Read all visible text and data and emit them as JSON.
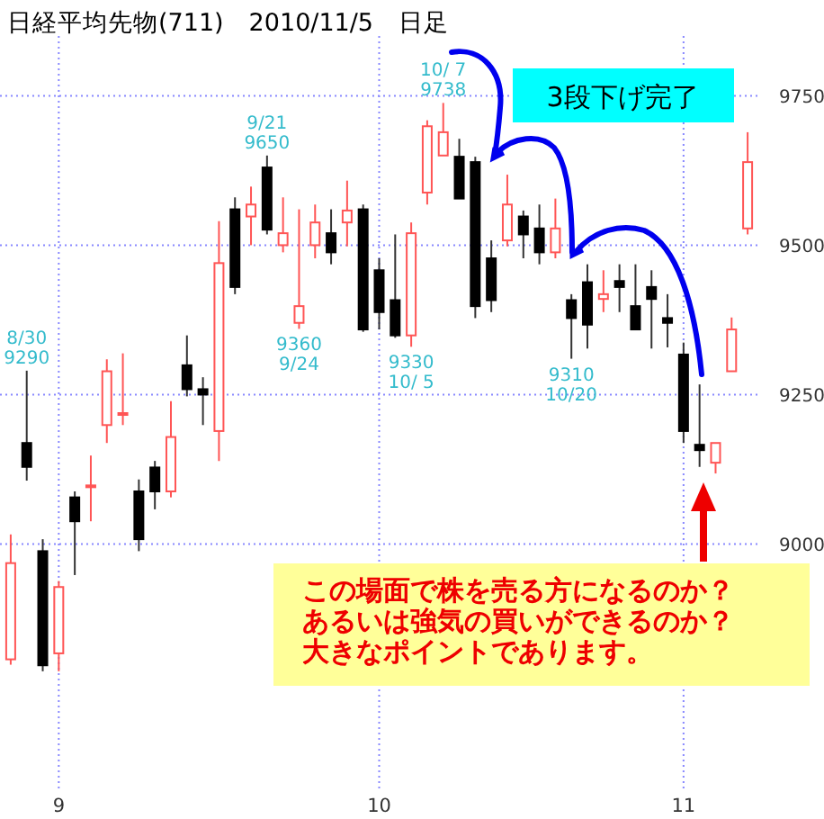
{
  "chart_data": {
    "type": "candlestick",
    "title": "日経平均先物(711)　2010/11/5　日足",
    "categories": [
      null,
      null,
      null,
      "9",
      null,
      null,
      null,
      null,
      null,
      null,
      null,
      null,
      null,
      null,
      null,
      null,
      null,
      null,
      null,
      null,
      null,
      null,
      null,
      "10",
      null,
      null,
      null,
      null,
      null,
      null,
      null,
      null,
      null,
      null,
      null,
      null,
      null,
      null,
      null,
      null,
      null,
      null,
      "11",
      null,
      null,
      null,
      null
    ],
    "ohlc": [
      [
        8807,
        9016,
        8798,
        8968
      ],
      [
        9169,
        9290,
        9106,
        9129
      ],
      [
        8988,
        9008,
        8787,
        8797
      ],
      [
        8817,
        8938,
        8787,
        8928
      ],
      [
        9078,
        9088,
        8948,
        9038
      ],
      [
        9098,
        9148,
        9038,
        9098
      ],
      [
        9199,
        9309,
        9169,
        9289
      ],
      [
        9219,
        9319,
        9199,
        9219
      ],
      [
        9088,
        9108,
        8988,
        9008
      ],
      [
        9128,
        9139,
        9058,
        9088
      ],
      [
        9088,
        9239,
        9078,
        9179
      ],
      [
        9299,
        9349,
        9247,
        9259
      ],
      [
        9259,
        9279,
        9199,
        9250
      ],
      [
        9189,
        9540,
        9139,
        9470
      ],
      [
        9560,
        9580,
        9418,
        9430
      ],
      [
        9548,
        9598,
        9500,
        9568
      ],
      [
        9630,
        9650,
        9518,
        9526
      ],
      [
        9500,
        9580,
        9488,
        9520
      ],
      [
        9370,
        9560,
        9360,
        9398
      ],
      [
        9500,
        9568,
        9478,
        9538
      ],
      [
        9520,
        9560,
        9468,
        9488
      ],
      [
        9538,
        9608,
        9498,
        9558
      ],
      [
        9560,
        9568,
        9355,
        9359
      ],
      [
        9458,
        9478,
        9359,
        9388
      ],
      [
        9408,
        9518,
        9345,
        9349
      ],
      [
        9349,
        9538,
        9330,
        9520
      ],
      [
        9588,
        9709,
        9568,
        9699
      ],
      [
        9650,
        9738,
        9650,
        9689
      ],
      [
        9648,
        9678,
        9578,
        9578
      ],
      [
        9639,
        9648,
        9378,
        9398
      ],
      [
        9478,
        9508,
        9388,
        9408
      ],
      [
        9508,
        9618,
        9498,
        9568
      ],
      [
        9548,
        9558,
        9478,
        9518
      ],
      [
        9528,
        9568,
        9468,
        9488
      ],
      [
        9488,
        9578,
        9478,
        9528
      ],
      [
        9408,
        9418,
        9310,
        9378
      ],
      [
        9438,
        9468,
        9327,
        9367
      ],
      [
        9410,
        9458,
        9388,
        9418
      ],
      [
        9440,
        9468,
        9388,
        9430
      ],
      [
        9398,
        9468,
        9359,
        9359
      ],
      [
        9430,
        9458,
        9327,
        9410
      ],
      [
        9378,
        9418,
        9329,
        9370
      ],
      [
        9317,
        9337,
        9169,
        9189
      ],
      [
        9166,
        9267,
        9129,
        9157
      ],
      [
        9136,
        9169,
        9118,
        9169
      ],
      [
        9289,
        9379,
        9289,
        9359
      ],
      [
        9528,
        9689,
        9518,
        9639
      ]
    ],
    "ylim": [
      8585,
      9850
    ],
    "yticks": [
      9000,
      9250,
      9500,
      9750
    ],
    "grid": true,
    "annotations": [
      {
        "text": "8/30\n9290",
        "y": 9290
      },
      {
        "text": "9/21\n9650",
        "y": 9650
      },
      {
        "text": "9360\n9/24",
        "y": 9360
      },
      {
        "text": "9330\n10/ 5",
        "y": 9330
      },
      {
        "text": "10/ 7\n9738",
        "y": 9738
      },
      {
        "text": "9310\n10/20",
        "y": 9310
      },
      "3段下げ完了",
      "この場面で株を売る方になるのか？",
      "あるいは強気の買いができるのか？",
      "大きなポイントであります。"
    ]
  }
}
